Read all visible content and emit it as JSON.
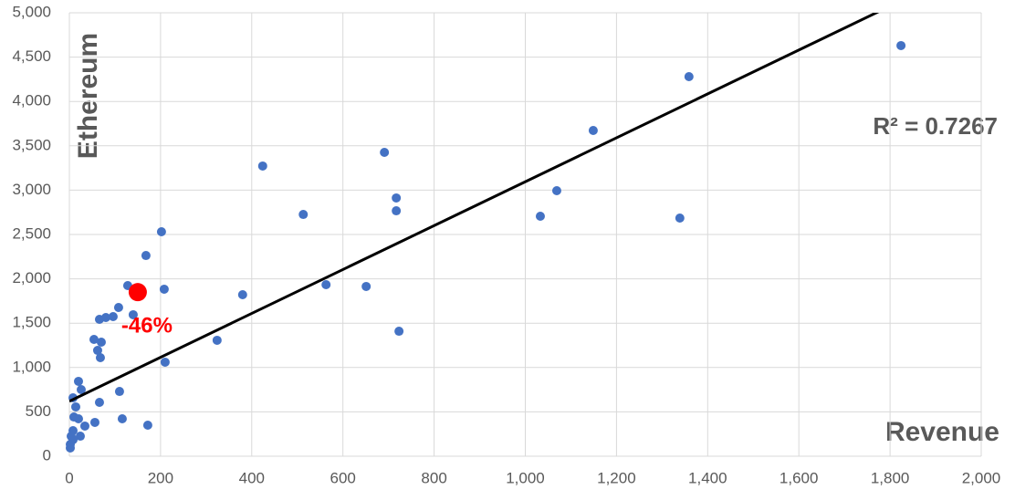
{
  "chart_data": {
    "type": "scatter",
    "x_label": "Revenue",
    "y_label": "Ethereum",
    "xlim": [
      0,
      2000
    ],
    "ylim": [
      0,
      5000
    ],
    "xticks": [
      0,
      200,
      400,
      600,
      800,
      {
        "value": 1000,
        "label": "1,000"
      },
      {
        "value": 1200,
        "label": "1,200"
      },
      {
        "value": 1400,
        "label": "1,400"
      },
      {
        "value": 1600,
        "label": "1,600"
      },
      {
        "value": 1800,
        "label": "1,800"
      },
      {
        "value": 2000,
        "label": "2,000"
      }
    ],
    "yticks": [
      0,
      500,
      {
        "value": 1000,
        "label": "1,000"
      },
      {
        "value": 1500,
        "label": "1,500"
      },
      {
        "value": 2000,
        "label": "2,000"
      },
      {
        "value": 2500,
        "label": "2,500"
      },
      {
        "value": 3000,
        "label": "3,000"
      },
      {
        "value": 3500,
        "label": "3,500"
      },
      {
        "value": 4000,
        "label": "4,000"
      },
      {
        "value": 4500,
        "label": "4,500"
      },
      {
        "value": 5000,
        "label": "5,000"
      }
    ],
    "grid": true,
    "series": [
      {
        "color": "#4472c4",
        "x": [
          1824,
          1359,
          1149,
          691,
          424,
          1069,
          717,
          513,
          717,
          1033,
          1339,
          202,
          168,
          128,
          208,
          563,
          651,
          380,
          108,
          96,
          80,
          66,
          140,
          723,
          324,
          54,
          70,
          62,
          68,
          210,
          20,
          26,
          110,
          8,
          66,
          14,
          10,
          20,
          116,
          56,
          34,
          172,
          24,
          8,
          4,
          8,
          2,
          2
        ],
        "values": [
          4630,
          4280,
          3673,
          3426,
          3272,
          2994,
          2912,
          2726,
          2767,
          2706,
          2685,
          2531,
          2263,
          1924,
          1883,
          1934,
          1914,
          1821,
          1677,
          1574,
          1564,
          1543,
          1595,
          1409,
          1307,
          1317,
          1286,
          1193,
          1111,
          1060,
          844,
          751,
          730,
          658,
          607,
          556,
          442,
          422,
          422,
          381,
          340,
          350,
          226,
          288,
          226,
          185,
          134,
          93
        ]
      },
      {
        "color": "#ff0000",
        "x": [
          150
        ],
        "values": [
          1850
        ]
      }
    ],
    "annotation": "-46%",
    "trendline": {
      "slope": 2.475,
      "intercept": 620,
      "color": "#000000",
      "label": "R² = 0.7267"
    }
  }
}
